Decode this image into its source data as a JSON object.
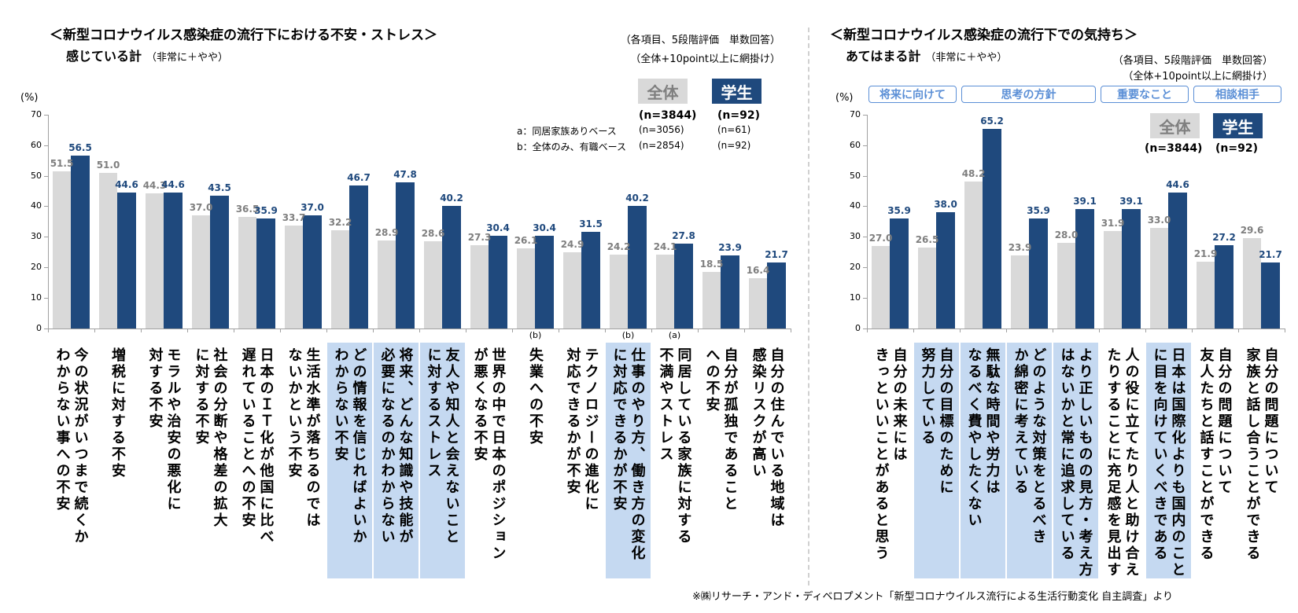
{
  "colors": {
    "all": "#d9d9d9",
    "student": "#1f497d",
    "highlight": "#c5d9f1",
    "all_label": "#7f7f7f",
    "group_border": "#5b8fd6"
  },
  "left": {
    "title": "＜新型コロナウイルス感染症の流行下における不安・ストレス＞",
    "subtitle": "感じている計",
    "subtitle_note": "（非常に＋やや）",
    "note1": "（各項目、5段階評価　単数回答）",
    "note2": "（全体+10point以上に網掛け）",
    "legend": {
      "all": "全体",
      "student": "学生",
      "all_n": "(n=3844)",
      "student_n": "(n=92)",
      "row_a": "a：同居家族ありベース",
      "row_a_all": "(n=3056)",
      "row_a_student": "(n=61)",
      "row_b": "b：全体のみ、有職ベース",
      "row_b_all": "(n=2854)",
      "row_b_student": "(n=92)"
    },
    "unit": "(%)"
  },
  "right": {
    "title": "＜新型コロナウイルス感染症の流行下での気持ち＞",
    "subtitle": "あてはまる計",
    "subtitle_note": "（非常に＋やや）",
    "note1": "（各項目、5段階評価　単数回答）",
    "note2": "（全体+10point以上に網掛け）",
    "legend": {
      "all": "全体",
      "student": "学生",
      "all_n": "(n=3844)",
      "student_n": "(n=92)"
    },
    "unit": "(%)",
    "groups": [
      {
        "label": "将来に向けて",
        "from": 0,
        "to": 1
      },
      {
        "label": "思考の方針",
        "from": 2,
        "to": 4
      },
      {
        "label": "重要なこと",
        "from": 5,
        "to": 6
      },
      {
        "label": "相談相手",
        "from": 7,
        "to": 8
      }
    ]
  },
  "footer": "※㈱リサーチ・アンド・ディベロプメント「新型コロナウイルス流行による生活行動変化 自主調査」より",
  "chart_data": [
    {
      "type": "bar",
      "title": "新型コロナウイルス感染症の流行下における不安・ストレス 感じている計",
      "ylabel": "(%)",
      "ylim": [
        0,
        70
      ],
      "yticks": [
        0,
        10,
        20,
        30,
        40,
        50,
        60,
        70
      ],
      "categories": [
        "今の状況がいつまで続くか\nわからない事への不安",
        "増税に対する不安",
        "モラルや治安の悪化に\n対する不安",
        "社会の分断や格差の拡大\nに対する不安",
        "日本のＩＴ化が他国に比べ\n遅れていることへの不安",
        "生活水準が落ちるのでは\nないかという不安",
        "どの情報を信じればよいか\nわからない不安",
        "将来、どんな知識や技能が\n必要になるのかわからない",
        "友人や知人と会えないこと\nに対するストレス",
        "世界の中で日本のポジション\nが悪くなる不安",
        "失業への不安",
        "テクノロジーの進化に\n対応できるかが不安",
        "仕事のやり方、働き方の変化\nに対応できるかが不安",
        "同居している家族に対する\n不満やストレス",
        "自分が孤独であること\nへの不安",
        "自分の住んでいる地域は\n感染リスクが高い"
      ],
      "notes": [
        "",
        "",
        "",
        "",
        "",
        "",
        "",
        "",
        "",
        "",
        "(b)",
        "",
        "(b)",
        "(a)",
        "",
        ""
      ],
      "highlighted": [
        6,
        7,
        8,
        12
      ],
      "series": [
        {
          "name": "全体",
          "values": [
            51.5,
            51.0,
            44.3,
            37.0,
            36.5,
            33.7,
            32.2,
            28.9,
            28.6,
            27.3,
            26.1,
            24.9,
            24.2,
            24.1,
            18.5,
            16.4
          ]
        },
        {
          "name": "学生",
          "values": [
            56.5,
            44.6,
            44.6,
            43.5,
            35.9,
            37.0,
            46.7,
            47.8,
            40.2,
            30.4,
            30.4,
            31.5,
            40.2,
            27.8,
            23.9,
            21.7
          ]
        }
      ]
    },
    {
      "type": "bar",
      "title": "新型コロナウイルス感染症の流行下での気持ち あてはまる計",
      "ylabel": "(%)",
      "ylim": [
        0,
        70
      ],
      "yticks": [
        0,
        10,
        20,
        30,
        40,
        50,
        60,
        70
      ],
      "categories": [
        "自分の未来には\nきっといいことがあると思う",
        "自分の目標のために\n努力している",
        "無駄な時間や労力は\nなるべく費やしたくない",
        "どのような対策をとるべき\nか綿密に考えている",
        "より正しいものの見方・考え方\nはないかと常に追求している",
        "人の役に立てたり人と助け合え\nたりすることに充足感を見出す",
        "日本は国際化よりも国内のこと\nに目を向けていくべきである",
        "自分の問題について\n友人たちと話すことができる",
        "自分の問題について\n家族と話し合うことができる"
      ],
      "notes": [
        "",
        "",
        "",
        "",
        "",
        "",
        "",
        "",
        ""
      ],
      "highlighted": [
        1,
        2,
        3,
        4,
        6
      ],
      "series": [
        {
          "name": "全体",
          "values": [
            27.0,
            26.5,
            48.2,
            23.9,
            28.0,
            31.9,
            33.0,
            21.9,
            29.6
          ]
        },
        {
          "name": "学生",
          "values": [
            35.9,
            38.0,
            65.2,
            35.9,
            39.1,
            39.1,
            44.6,
            27.2,
            21.7
          ]
        }
      ]
    }
  ]
}
